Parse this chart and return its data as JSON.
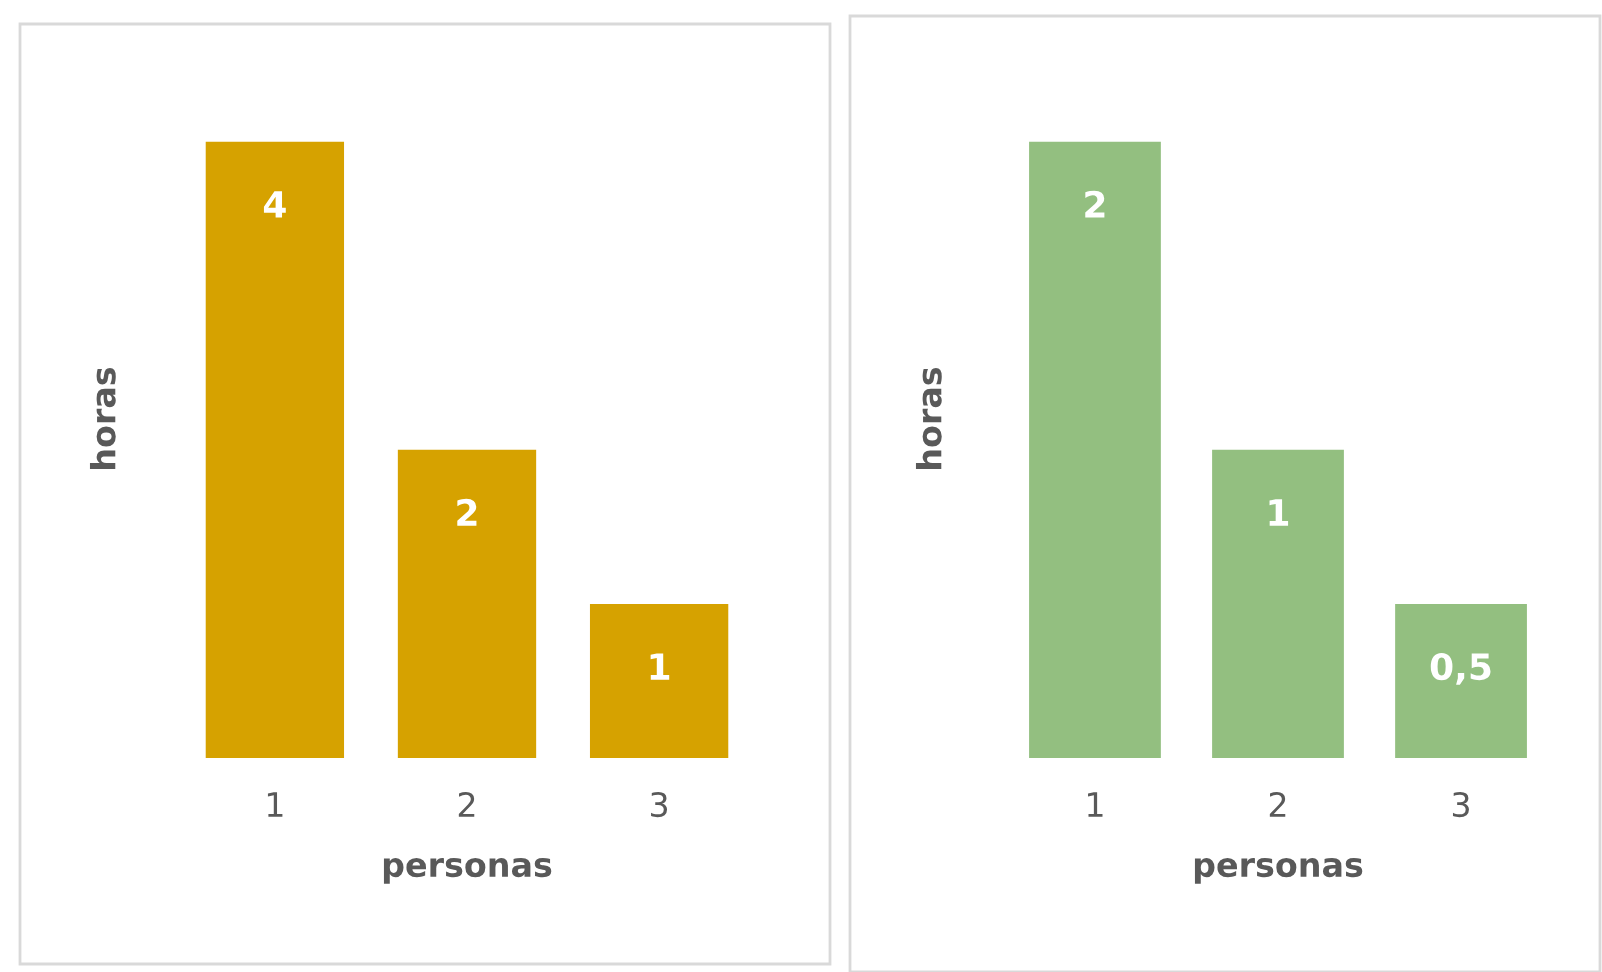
{
  "chart_data": [
    {
      "type": "bar",
      "xlabel": "personas",
      "ylabel": "horas",
      "categories": [
        "1",
        "2",
        "3"
      ],
      "values": [
        4,
        2,
        1
      ],
      "color": "#d6a200",
      "value_labels": [
        "4",
        "2",
        "1"
      ],
      "grid": false,
      "legend": false
    },
    {
      "type": "bar",
      "xlabel": "personas",
      "ylabel": "horas",
      "categories": [
        "1",
        "2",
        "3"
      ],
      "values": [
        2,
        1,
        0.5
      ],
      "color": "#93bf80",
      "value_labels": [
        "2",
        "1",
        "0,5"
      ],
      "grid": false,
      "legend": false
    }
  ]
}
